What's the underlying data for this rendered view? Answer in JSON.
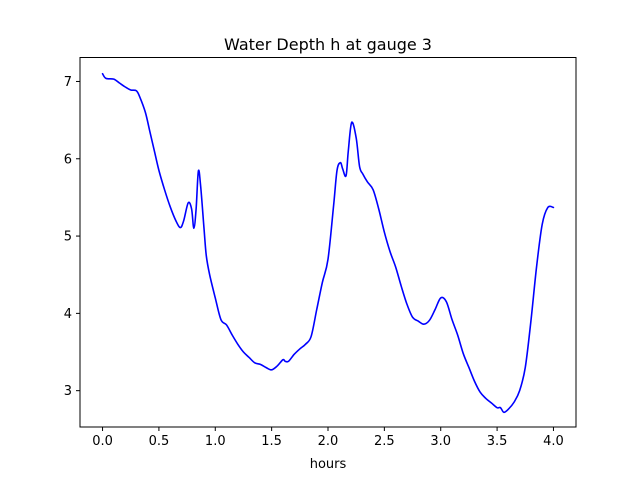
{
  "chart_data": {
    "type": "line",
    "title": "Water Depth h at gauge 3",
    "xlabel": "hours",
    "ylabel": "",
    "xlim": [
      -0.2,
      4.2
    ],
    "ylim": [
      2.53,
      7.31
    ],
    "xticks": [
      0.0,
      0.5,
      1.0,
      1.5,
      2.0,
      2.5,
      3.0,
      3.5,
      4.0
    ],
    "xtick_labels": [
      "0.0",
      "0.5",
      "1.0",
      "1.5",
      "2.0",
      "2.5",
      "3.0",
      "3.5",
      "4.0"
    ],
    "yticks": [
      3,
      4,
      5,
      6,
      7
    ],
    "ytick_labels": [
      "3",
      "4",
      "5",
      "6",
      "7"
    ],
    "grid": false,
    "series": [
      {
        "color": "#0000ff",
        "x": [
          0.0,
          0.03,
          0.1,
          0.15,
          0.2,
          0.25,
          0.3,
          0.33,
          0.38,
          0.42,
          0.46,
          0.5,
          0.55,
          0.6,
          0.65,
          0.69,
          0.72,
          0.76,
          0.79,
          0.81,
          0.83,
          0.85,
          0.87,
          0.9,
          0.92,
          0.95,
          1.0,
          1.05,
          1.1,
          1.15,
          1.2,
          1.25,
          1.3,
          1.35,
          1.4,
          1.45,
          1.5,
          1.55,
          1.6,
          1.62,
          1.65,
          1.7,
          1.75,
          1.8,
          1.85,
          1.9,
          1.95,
          2.0,
          2.05,
          2.08,
          2.11,
          2.13,
          2.16,
          2.18,
          2.21,
          2.25,
          2.28,
          2.31,
          2.35,
          2.4,
          2.45,
          2.5,
          2.55,
          2.6,
          2.65,
          2.7,
          2.75,
          2.8,
          2.85,
          2.9,
          2.95,
          3.0,
          3.05,
          3.1,
          3.15,
          3.2,
          3.25,
          3.3,
          3.35,
          3.4,
          3.45,
          3.5,
          3.53,
          3.56,
          3.6,
          3.65,
          3.7,
          3.75,
          3.8,
          3.85,
          3.9,
          3.95,
          4.0
        ],
        "values": [
          7.1,
          7.04,
          7.03,
          6.98,
          6.93,
          6.89,
          6.88,
          6.8,
          6.6,
          6.35,
          6.1,
          5.85,
          5.6,
          5.38,
          5.2,
          5.11,
          5.2,
          5.43,
          5.35,
          5.1,
          5.35,
          5.84,
          5.65,
          5.1,
          4.75,
          4.5,
          4.2,
          3.92,
          3.85,
          3.72,
          3.6,
          3.5,
          3.43,
          3.36,
          3.34,
          3.3,
          3.27,
          3.32,
          3.4,
          3.38,
          3.38,
          3.47,
          3.54,
          3.6,
          3.7,
          4.05,
          4.4,
          4.7,
          5.4,
          5.85,
          5.95,
          5.87,
          5.78,
          6.1,
          6.47,
          6.27,
          5.9,
          5.8,
          5.7,
          5.6,
          5.35,
          5.05,
          4.8,
          4.6,
          4.35,
          4.12,
          3.95,
          3.9,
          3.86,
          3.91,
          4.05,
          4.2,
          4.15,
          3.92,
          3.72,
          3.48,
          3.3,
          3.12,
          2.98,
          2.9,
          2.84,
          2.78,
          2.78,
          2.72,
          2.76,
          2.85,
          3.0,
          3.3,
          3.9,
          4.6,
          5.15,
          5.37,
          5.37
        ]
      }
    ]
  }
}
